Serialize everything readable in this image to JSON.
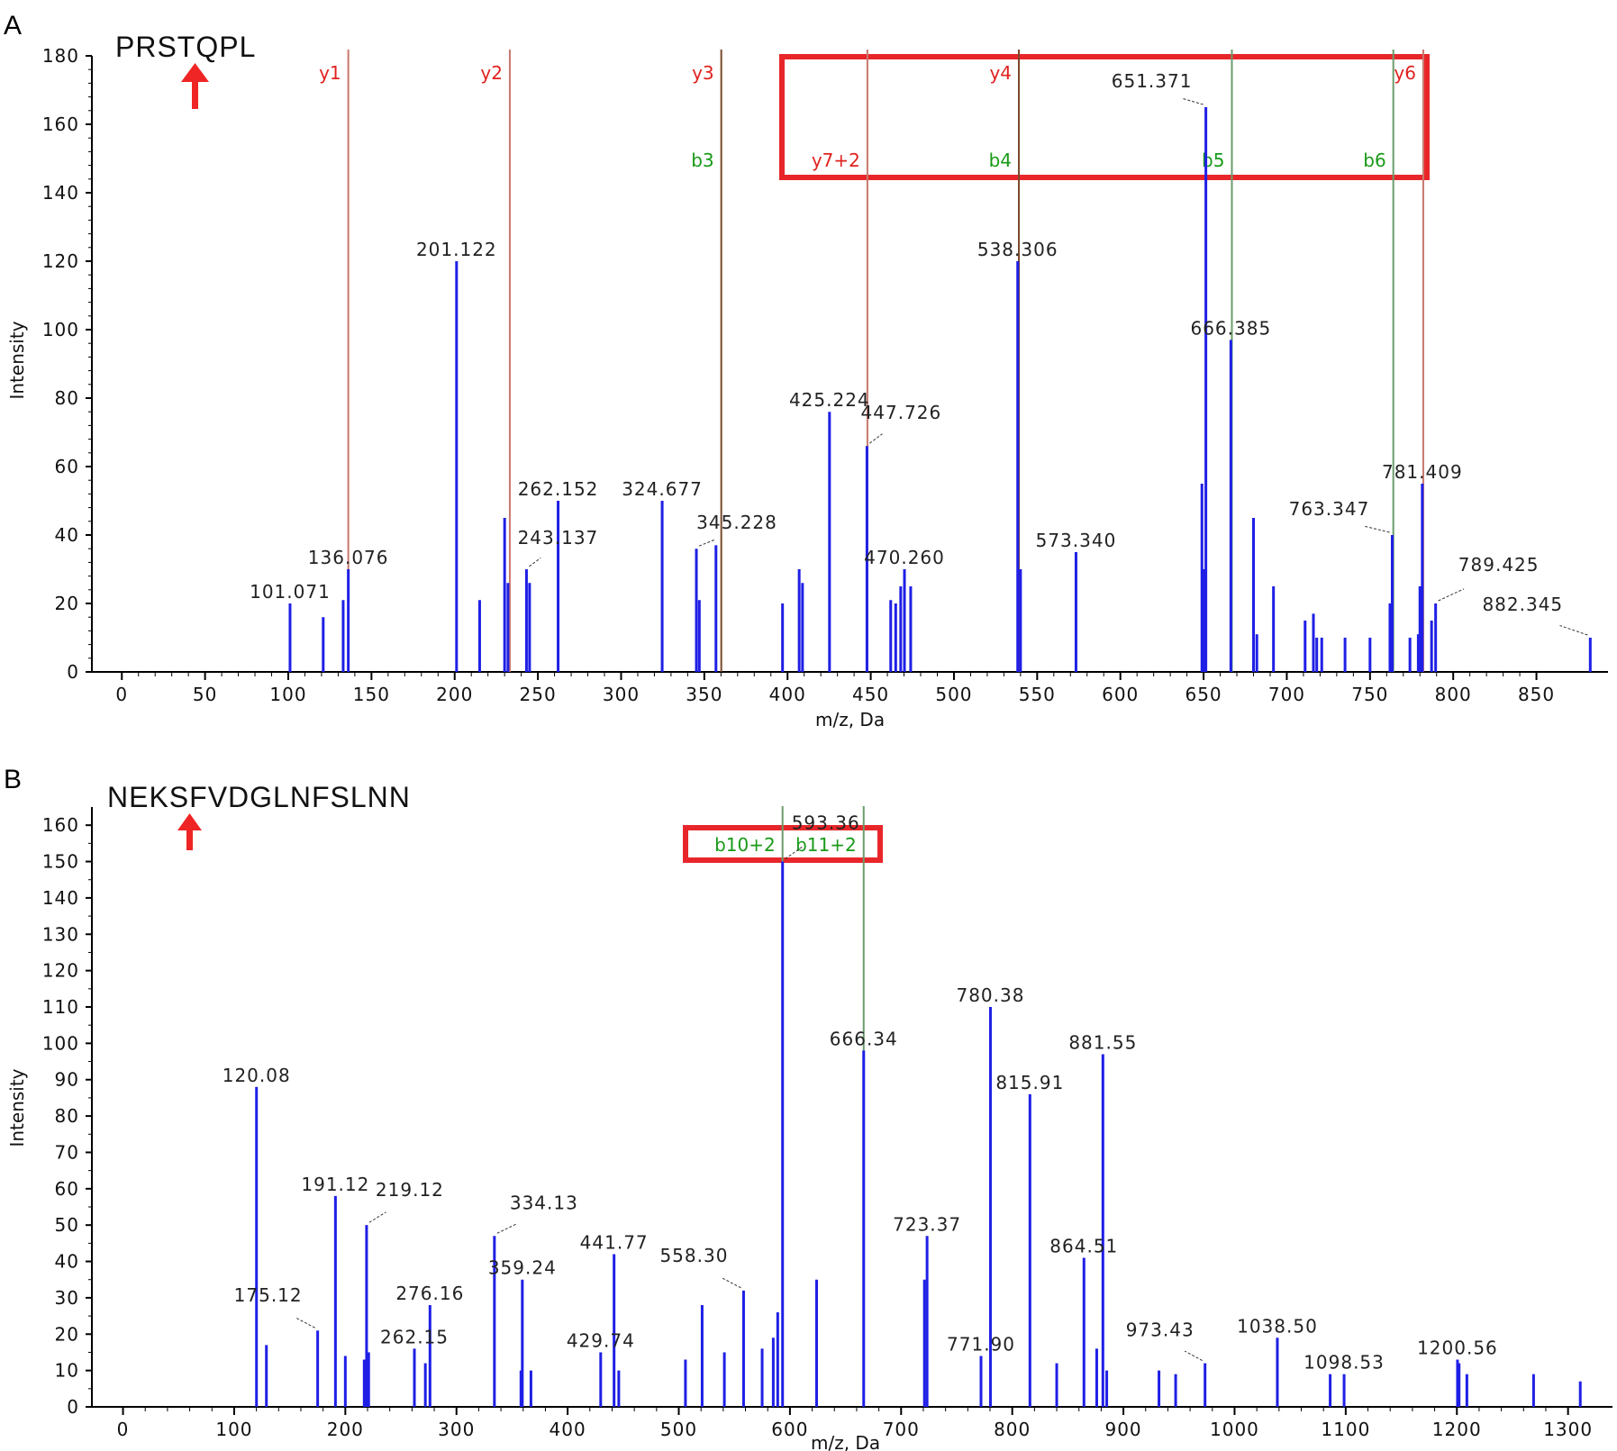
{
  "colors": {
    "peak": "#1f1fe6",
    "y_ion": "#e0221f",
    "b_ion": "#189a18",
    "y_line": "#c8786e",
    "b_line": "#6c9c6c",
    "dark_line": "#7a4a2a",
    "highlight_box": "#e8262a",
    "arrow": "#ef2525"
  },
  "chart_data": [
    {
      "type": "bar",
      "panel": "A",
      "title": "PRSTQPL",
      "xlabel": "m/z, Da",
      "ylabel": "Intensity",
      "xlim": [
        -18,
        893
      ],
      "ylim": [
        0,
        180
      ],
      "xticks": [
        0,
        50,
        100,
        150,
        200,
        250,
        300,
        350,
        400,
        450,
        500,
        550,
        600,
        650,
        700,
        750,
        800,
        850
      ],
      "yticks": [
        0,
        20,
        40,
        60,
        80,
        100,
        120,
        140,
        160,
        180
      ],
      "peaks": [
        {
          "mz": 101.071,
          "intensity": 20
        },
        {
          "mz": 121,
          "intensity": 16
        },
        {
          "mz": 133,
          "intensity": 21
        },
        {
          "mz": 136.076,
          "intensity": 30
        },
        {
          "mz": 201.122,
          "intensity": 120
        },
        {
          "mz": 215,
          "intensity": 21
        },
        {
          "mz": 230,
          "intensity": 45
        },
        {
          "mz": 232,
          "intensity": 26
        },
        {
          "mz": 243.137,
          "intensity": 30
        },
        {
          "mz": 245,
          "intensity": 26
        },
        {
          "mz": 262.152,
          "intensity": 50
        },
        {
          "mz": 324.677,
          "intensity": 50
        },
        {
          "mz": 345.228,
          "intensity": 36
        },
        {
          "mz": 347,
          "intensity": 21
        },
        {
          "mz": 357,
          "intensity": 37
        },
        {
          "mz": 397,
          "intensity": 20
        },
        {
          "mz": 407,
          "intensity": 30
        },
        {
          "mz": 409,
          "intensity": 26
        },
        {
          "mz": 425.224,
          "intensity": 76
        },
        {
          "mz": 447.726,
          "intensity": 66
        },
        {
          "mz": 462,
          "intensity": 21
        },
        {
          "mz": 465,
          "intensity": 20
        },
        {
          "mz": 468,
          "intensity": 25
        },
        {
          "mz": 470.26,
          "intensity": 30
        },
        {
          "mz": 474,
          "intensity": 25
        },
        {
          "mz": 538.306,
          "intensity": 120
        },
        {
          "mz": 540,
          "intensity": 30
        },
        {
          "mz": 573.34,
          "intensity": 35
        },
        {
          "mz": 649,
          "intensity": 55
        },
        {
          "mz": 650,
          "intensity": 30
        },
        {
          "mz": 651.371,
          "intensity": 165
        },
        {
          "mz": 666.385,
          "intensity": 97
        },
        {
          "mz": 680,
          "intensity": 45
        },
        {
          "mz": 682,
          "intensity": 11
        },
        {
          "mz": 692,
          "intensity": 25
        },
        {
          "mz": 711,
          "intensity": 15
        },
        {
          "mz": 716,
          "intensity": 17
        },
        {
          "mz": 718,
          "intensity": 10
        },
        {
          "mz": 721,
          "intensity": 10
        },
        {
          "mz": 735,
          "intensity": 10
        },
        {
          "mz": 750,
          "intensity": 10
        },
        {
          "mz": 762,
          "intensity": 20
        },
        {
          "mz": 763.347,
          "intensity": 40
        },
        {
          "mz": 774,
          "intensity": 10
        },
        {
          "mz": 779,
          "intensity": 11
        },
        {
          "mz": 780,
          "intensity": 25
        },
        {
          "mz": 781.409,
          "intensity": 55
        },
        {
          "mz": 787,
          "intensity": 15
        },
        {
          "mz": 789.425,
          "intensity": 20
        },
        {
          "mz": 882.345,
          "intensity": 10
        }
      ],
      "peak_labels": [
        {
          "text": "101.071",
          "mz": 101.071,
          "intensity": 20,
          "leader": false
        },
        {
          "text": "136.076",
          "mz": 136.076,
          "intensity": 30,
          "leader": false
        },
        {
          "text": "201.122",
          "mz": 201.122,
          "intensity": 120,
          "leader": false
        },
        {
          "text": "243.137",
          "mz": 243.137,
          "intensity": 30,
          "leader": true
        },
        {
          "text": "262.152",
          "mz": 262.152,
          "intensity": 50,
          "leader": false
        },
        {
          "text": "324.677",
          "mz": 324.677,
          "intensity": 50,
          "leader": false
        },
        {
          "text": "345.228",
          "mz": 345.228,
          "intensity": 36,
          "leader": true
        },
        {
          "text": "425.224",
          "mz": 425.224,
          "intensity": 76,
          "leader": false
        },
        {
          "text": "447.726",
          "mz": 447.726,
          "intensity": 66,
          "leader": true
        },
        {
          "text": "470.260",
          "mz": 470.26,
          "intensity": 30,
          "leader": false
        },
        {
          "text": "538.306",
          "mz": 538.306,
          "intensity": 120,
          "leader": false
        },
        {
          "text": "573.340",
          "mz": 573.34,
          "intensity": 35,
          "leader": false
        },
        {
          "text": "651.371",
          "mz": 651.371,
          "intensity": 165,
          "leader": true
        },
        {
          "text": "666.385",
          "mz": 666.385,
          "intensity": 97,
          "leader": false
        },
        {
          "text": "763.347",
          "mz": 763.347,
          "intensity": 40,
          "leader": true
        },
        {
          "text": "781.409",
          "mz": 781.409,
          "intensity": 55,
          "leader": false
        },
        {
          "text": "789.425",
          "mz": 789.425,
          "intensity": 20,
          "leader": true
        },
        {
          "text": "882.345",
          "mz": 882.345,
          "intensity": 10,
          "leader": true
        }
      ],
      "ion_markers": [
        {
          "label": "y1",
          "mz": 136.076,
          "kind": "y",
          "row": 0
        },
        {
          "label": "y2",
          "mz": 233.128,
          "kind": "y",
          "row": 0
        },
        {
          "label": "y3",
          "mz": 360.186,
          "kind": "dark",
          "row": 0
        },
        {
          "label": "b3",
          "mz": 360.186,
          "kind": "dark",
          "row": 1
        },
        {
          "label": "y7+2",
          "mz": 448.0,
          "kind": "y",
          "row": 1
        },
        {
          "label": "y4",
          "mz": 539.0,
          "kind": "dark",
          "row": 0
        },
        {
          "label": "b4",
          "mz": 539.0,
          "kind": "dark",
          "row": 1
        },
        {
          "label": "b5",
          "mz": 667.0,
          "kind": "b",
          "row": 1
        },
        {
          "label": "b6",
          "mz": 764.0,
          "kind": "b",
          "row": 1
        },
        {
          "label": "y6",
          "mz": 782.0,
          "kind": "y",
          "row": 0
        }
      ]
    },
    {
      "type": "bar",
      "panel": "B",
      "title": "NEKSFVDGLNFSLNN",
      "xlabel": "m/z, Da",
      "ylabel": "Intensity",
      "xlim": [
        -28,
        1340
      ],
      "ylim": [
        0,
        165
      ],
      "xticks": [
        0,
        100,
        200,
        300,
        400,
        500,
        600,
        700,
        800,
        900,
        1000,
        1100,
        1200,
        1300
      ],
      "yticks": [
        0,
        10,
        20,
        30,
        40,
        50,
        60,
        70,
        80,
        90,
        100,
        110,
        120,
        130,
        140,
        150,
        160
      ],
      "peaks": [
        {
          "mz": 120.08,
          "intensity": 88
        },
        {
          "mz": 129,
          "intensity": 17
        },
        {
          "mz": 175.12,
          "intensity": 21
        },
        {
          "mz": 191.12,
          "intensity": 58
        },
        {
          "mz": 200,
          "intensity": 14
        },
        {
          "mz": 217,
          "intensity": 13
        },
        {
          "mz": 219.12,
          "intensity": 50
        },
        {
          "mz": 221,
          "intensity": 15
        },
        {
          "mz": 262.15,
          "intensity": 16
        },
        {
          "mz": 272,
          "intensity": 12
        },
        {
          "mz": 276.16,
          "intensity": 28
        },
        {
          "mz": 334.13,
          "intensity": 47
        },
        {
          "mz": 358,
          "intensity": 10
        },
        {
          "mz": 359.24,
          "intensity": 35
        },
        {
          "mz": 367,
          "intensity": 10
        },
        {
          "mz": 429.74,
          "intensity": 15
        },
        {
          "mz": 441.77,
          "intensity": 42
        },
        {
          "mz": 446,
          "intensity": 10
        },
        {
          "mz": 506,
          "intensity": 13
        },
        {
          "mz": 521,
          "intensity": 28
        },
        {
          "mz": 541,
          "intensity": 15
        },
        {
          "mz": 558.3,
          "intensity": 32
        },
        {
          "mz": 575,
          "intensity": 16
        },
        {
          "mz": 585,
          "intensity": 19
        },
        {
          "mz": 589,
          "intensity": 26
        },
        {
          "mz": 593.36,
          "intensity": 150
        },
        {
          "mz": 624,
          "intensity": 35
        },
        {
          "mz": 666.34,
          "intensity": 98
        },
        {
          "mz": 721,
          "intensity": 35
        },
        {
          "mz": 723.37,
          "intensity": 47
        },
        {
          "mz": 771.9,
          "intensity": 14
        },
        {
          "mz": 780.38,
          "intensity": 110
        },
        {
          "mz": 815.91,
          "intensity": 86
        },
        {
          "mz": 840,
          "intensity": 12
        },
        {
          "mz": 864.51,
          "intensity": 41
        },
        {
          "mz": 876,
          "intensity": 16
        },
        {
          "mz": 881.55,
          "intensity": 97
        },
        {
          "mz": 885,
          "intensity": 10
        },
        {
          "mz": 932,
          "intensity": 10
        },
        {
          "mz": 947,
          "intensity": 9
        },
        {
          "mz": 973.43,
          "intensity": 12
        },
        {
          "mz": 1038.5,
          "intensity": 19
        },
        {
          "mz": 1086,
          "intensity": 9
        },
        {
          "mz": 1098.53,
          "intensity": 9
        },
        {
          "mz": 1200.56,
          "intensity": 13
        },
        {
          "mz": 1202,
          "intensity": 12
        },
        {
          "mz": 1209,
          "intensity": 9
        },
        {
          "mz": 1269,
          "intensity": 9
        },
        {
          "mz": 1311,
          "intensity": 7
        }
      ],
      "peak_labels": [
        {
          "text": "120.08",
          "mz": 120.08,
          "intensity": 88,
          "leader": false
        },
        {
          "text": "175.12",
          "mz": 175.12,
          "intensity": 21,
          "leader": true
        },
        {
          "text": "191.12",
          "mz": 191.12,
          "intensity": 58,
          "leader": false
        },
        {
          "text": "219.12",
          "mz": 219.12,
          "intensity": 50,
          "leader": true
        },
        {
          "text": "262.15",
          "mz": 262.15,
          "intensity": 16,
          "leader": false
        },
        {
          "text": "276.16",
          "mz": 276.16,
          "intensity": 28,
          "leader": false
        },
        {
          "text": "334.13",
          "mz": 334.13,
          "intensity": 47,
          "leader": true
        },
        {
          "text": "359.24",
          "mz": 359.24,
          "intensity": 35,
          "leader": false
        },
        {
          "text": "429.74",
          "mz": 429.74,
          "intensity": 15,
          "leader": false
        },
        {
          "text": "441.77",
          "mz": 441.77,
          "intensity": 42,
          "leader": false
        },
        {
          "text": "558.30",
          "mz": 558.3,
          "intensity": 32,
          "leader": true
        },
        {
          "text": "593.36",
          "mz": 593.36,
          "intensity": 150,
          "leader": true
        },
        {
          "text": "666.34",
          "mz": 666.34,
          "intensity": 98,
          "leader": false
        },
        {
          "text": "723.37",
          "mz": 723.37,
          "intensity": 47,
          "leader": false
        },
        {
          "text": "771.90",
          "mz": 771.9,
          "intensity": 14,
          "leader": false
        },
        {
          "text": "780.38",
          "mz": 780.38,
          "intensity": 110,
          "leader": false
        },
        {
          "text": "815.91",
          "mz": 815.91,
          "intensity": 86,
          "leader": false
        },
        {
          "text": "864.51",
          "mz": 864.51,
          "intensity": 41,
          "leader": false
        },
        {
          "text": "881.55",
          "mz": 881.55,
          "intensity": 97,
          "leader": false
        },
        {
          "text": "973.43",
          "mz": 973.43,
          "intensity": 12,
          "leader": true
        },
        {
          "text": "1038.50",
          "mz": 1038.5,
          "intensity": 19,
          "leader": false
        },
        {
          "text": "1098.53",
          "mz": 1098.53,
          "intensity": 9,
          "leader": false
        },
        {
          "text": "1200.56",
          "mz": 1200.56,
          "intensity": 13,
          "leader": false
        }
      ],
      "ion_markers": [
        {
          "label": "b10+2",
          "mz": 593.36,
          "kind": "b",
          "row": 0
        },
        {
          "label": "b11+2",
          "mz": 666.34,
          "kind": "b",
          "row": 0
        }
      ]
    }
  ]
}
